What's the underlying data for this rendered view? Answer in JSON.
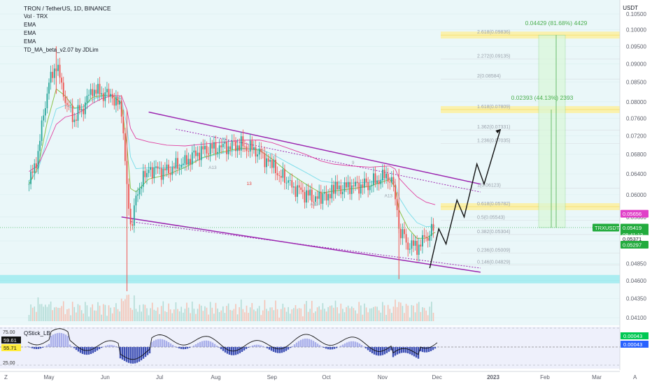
{
  "header": {
    "symbol_line": "TRON / TetherUS, 1D, BINANCE",
    "indicators": [
      "Vol · TRX",
      "EMA",
      "EMA",
      "EMA",
      "TD_MA_beta_v2.07 by JDLim"
    ],
    "currency": "USDT"
  },
  "colors": {
    "up": "#26a69a",
    "down": "#ef5350",
    "bg_tint": "#e8f7f9",
    "fib_band": "#fdf0a0",
    "channel": "#9c27b0",
    "target_green": "#4caf50",
    "support_band": "#5ee1e6",
    "price_badge": "#22ab3d",
    "pink_badge": "#e040c8"
  },
  "chart_data": [
    {
      "type": "candlestick",
      "title": "TRON / TetherUS, 1D, BINANCE",
      "xlabel": "",
      "ylabel": "",
      "x_ticks": [
        "May",
        "Jun",
        "Jul",
        "Aug",
        "Sep",
        "Oct",
        "Nov",
        "Dec",
        "2023",
        "Feb",
        "Mar"
      ],
      "y_ticks": [
        "0.10500",
        "0.10000",
        "0.09500",
        "0.09000",
        "0.08500",
        "0.08000",
        "0.07600",
        "0.07200",
        "0.06800",
        "0.06400",
        "0.06000",
        "0.05600",
        "0.05200",
        "0.04850",
        "0.04600",
        "0.04350",
        "0.04100"
      ],
      "ylim": [
        0.04,
        0.106
      ],
      "scale": "log",
      "close_series": [
        {
          "date": "2022-04-20",
          "close": 0.062
        },
        {
          "date": "2022-04-25",
          "close": 0.068
        },
        {
          "date": "2022-04-30",
          "close": 0.083
        },
        {
          "date": "2022-05-05",
          "close": 0.09
        },
        {
          "date": "2022-05-10",
          "close": 0.08
        },
        {
          "date": "2022-05-15",
          "close": 0.076
        },
        {
          "date": "2022-05-20",
          "close": 0.079
        },
        {
          "date": "2022-05-25",
          "close": 0.083
        },
        {
          "date": "2022-05-30",
          "close": 0.082
        },
        {
          "date": "2022-06-05",
          "close": 0.0815
        },
        {
          "date": "2022-06-10",
          "close": 0.078
        },
        {
          "date": "2022-06-13",
          "close": 0.062
        },
        {
          "date": "2022-06-15",
          "close": 0.054
        },
        {
          "date": "2022-06-18",
          "close": 0.06
        },
        {
          "date": "2022-06-25",
          "close": 0.065
        },
        {
          "date": "2022-07-05",
          "close": 0.0645
        },
        {
          "date": "2022-07-15",
          "close": 0.0665
        },
        {
          "date": "2022-07-25",
          "close": 0.069
        },
        {
          "date": "2022-08-05",
          "close": 0.0695
        },
        {
          "date": "2022-08-15",
          "close": 0.07
        },
        {
          "date": "2022-08-25",
          "close": 0.0685
        },
        {
          "date": "2022-09-01",
          "close": 0.0655
        },
        {
          "date": "2022-09-10",
          "close": 0.062
        },
        {
          "date": "2022-09-20",
          "close": 0.06
        },
        {
          "date": "2022-09-28",
          "close": 0.059
        },
        {
          "date": "2022-10-05",
          "close": 0.061
        },
        {
          "date": "2022-10-15",
          "close": 0.0615
        },
        {
          "date": "2022-10-25",
          "close": 0.062
        },
        {
          "date": "2022-11-05",
          "close": 0.064
        },
        {
          "date": "2022-11-08",
          "close": 0.06
        },
        {
          "date": "2022-11-10",
          "close": 0.054
        },
        {
          "date": "2022-11-15",
          "close": 0.0515
        },
        {
          "date": "2022-11-20",
          "close": 0.051
        },
        {
          "date": "2022-11-25",
          "close": 0.0525
        },
        {
          "date": "2022-11-30",
          "close": 0.0542
        }
      ],
      "fib_levels": [
        {
          "ratio": "2.618",
          "price": "0.09836",
          "label": "2.618(0.09836)"
        },
        {
          "ratio": "2.272",
          "price": "0.09135",
          "label": "2.272(0.09135)"
        },
        {
          "ratio": "2",
          "price": "0.08584",
          "label": "2(0.08584)"
        },
        {
          "ratio": "1.618",
          "price": "0.07809",
          "label": "1.618(0.07809)"
        },
        {
          "ratio": "1.362",
          "price": "0.07331",
          "label": "1.362(0.07331)"
        },
        {
          "ratio": "1.236",
          "price": "0.07035",
          "label": "1.236(0.07035)"
        },
        {
          "ratio": "1",
          "price": "0.06123",
          "label": "1(0.06123)"
        },
        {
          "ratio": "0.618",
          "price": "0.05782",
          "label": "0.618(0.05782)"
        },
        {
          "ratio": "0.5",
          "price": "0.05543",
          "label": "0.5(0.05543)"
        },
        {
          "ratio": "0.382",
          "price": "0.05304",
          "label": "0.382(0.05304)"
        },
        {
          "ratio": "0.236",
          "price": "0.05009",
          "label": "0.236(0.05009)"
        },
        {
          "ratio": "0.146",
          "price": "0.04829",
          "label": "0.146(0.04829)"
        }
      ],
      "targets": [
        {
          "label": "0.04429 (81.68%) 4429"
        },
        {
          "label": "0.02393 (44.13%) 2393"
        }
      ],
      "price_badges": [
        {
          "text": "0.05656",
          "kind": "pink"
        },
        {
          "text": "TRXUSDT",
          "kind": "green"
        },
        {
          "text": "0.05419",
          "kind": "green"
        },
        {
          "text": "08:41:13",
          "kind": "green"
        },
        {
          "text": "0.05371",
          "kind": "plain"
        },
        {
          "text": "0.05297",
          "kind": "green"
        }
      ],
      "annotations": [
        "13",
        "A13",
        "A13",
        "A13",
        "9"
      ]
    },
    {
      "type": "line",
      "title": "QStick_LB",
      "y_ticks": [
        "75.00",
        "25.00"
      ],
      "value_badges": [
        "59.61",
        "55.71",
        "0.00043",
        "0.00043"
      ]
    }
  ],
  "axis_icons": [
    "Z",
    "A"
  ]
}
